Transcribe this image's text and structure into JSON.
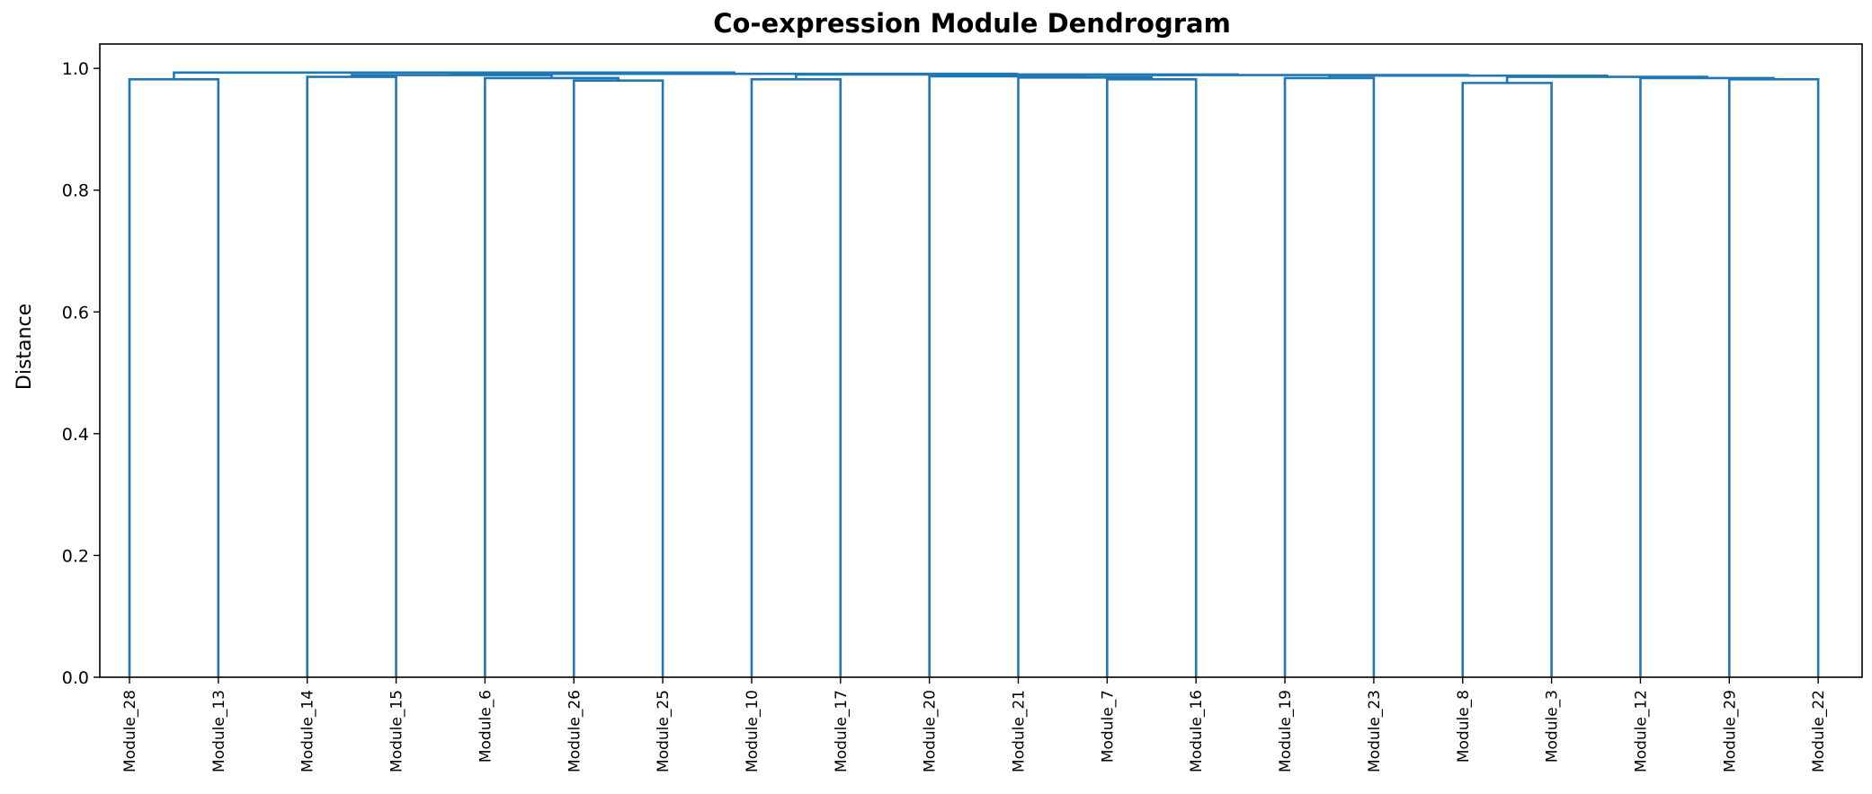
{
  "chart_data": {
    "type": "dendrogram",
    "title": "Co-expression Module Dendrogram",
    "xlabel": "",
    "ylabel": "Distance",
    "ylim": [
      0.0,
      1.04
    ],
    "yticks": [
      "0.0",
      "0.2",
      "0.4",
      "0.6",
      "0.8",
      "1.0"
    ],
    "grid": false,
    "color": "#1f77b4",
    "leaves": [
      "Module_28",
      "Module_13",
      "Module_14",
      "Module_15",
      "Module_6",
      "Module_26",
      "Module_25",
      "Module_10",
      "Module_17",
      "Module_20",
      "Module_21",
      "Module_7",
      "Module_16",
      "Module_19",
      "Module_23",
      "Module_8",
      "Module_3",
      "Module_12",
      "Module_29",
      "Module_22"
    ],
    "merges": [
      {
        "id": "c1",
        "left": "Module_28",
        "right": "Module_13",
        "height": 0.982
      },
      {
        "id": "c2",
        "left": "Module_14",
        "right": "Module_15",
        "height": 0.986
      },
      {
        "id": "c3",
        "left": "Module_26",
        "right": "Module_25",
        "height": 0.98
      },
      {
        "id": "c4",
        "left": "Module_6",
        "right": "c3",
        "height": 0.984
      },
      {
        "id": "c5",
        "left": "c2",
        "right": "c4",
        "height": 0.989
      },
      {
        "id": "c6",
        "left": "Module_10",
        "right": "Module_17",
        "height": 0.982
      },
      {
        "id": "c7",
        "left": "Module_7",
        "right": "Module_16",
        "height": 0.982
      },
      {
        "id": "c8",
        "left": "Module_21",
        "right": "c7",
        "height": 0.985
      },
      {
        "id": "c9",
        "left": "Module_20",
        "right": "c8",
        "height": 0.987
      },
      {
        "id": "c10",
        "left": "Module_19",
        "right": "Module_23",
        "height": 0.984
      },
      {
        "id": "c11",
        "left": "Module_8",
        "right": "Module_3",
        "height": 0.976
      },
      {
        "id": "c12",
        "left": "Module_29",
        "right": "Module_22",
        "height": 0.982
      },
      {
        "id": "c13",
        "left": "Module_12",
        "right": "c12",
        "height": 0.984
      },
      {
        "id": "c14",
        "left": "c11",
        "right": "c13",
        "height": 0.986
      },
      {
        "id": "c15",
        "left": "c10",
        "right": "c14",
        "height": 0.988
      },
      {
        "id": "c16",
        "left": "c9",
        "right": "c15",
        "height": 0.989
      },
      {
        "id": "c17",
        "left": "c6",
        "right": "c16",
        "height": 0.99
      },
      {
        "id": "c18",
        "left": "c5",
        "right": "c17",
        "height": 0.991
      },
      {
        "id": "c19",
        "left": "c1",
        "right": "c18",
        "height": 0.993
      }
    ]
  }
}
